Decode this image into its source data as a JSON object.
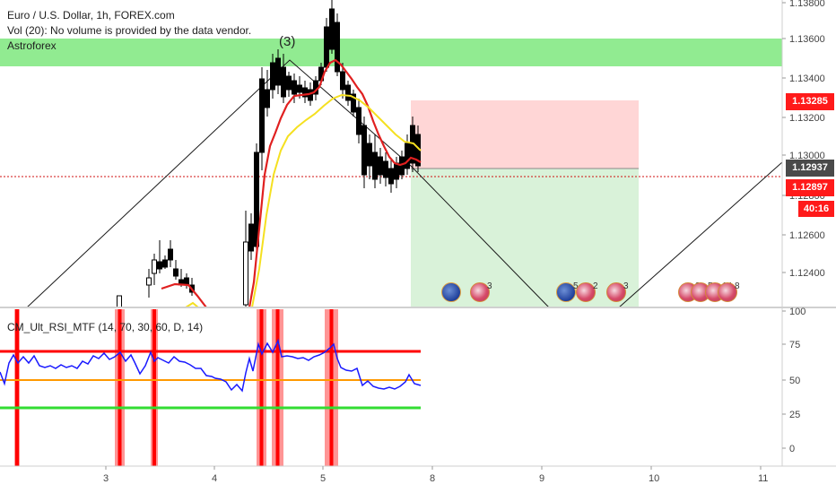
{
  "header": {
    "symbol_line": "Euro / U.S. Dollar, 1h, FOREX.com",
    "volume_line": "Vol (20): No volume is provided by the data vendor.",
    "author_line": "Astroforex"
  },
  "wave_label": "(3)",
  "rsi_title": "CM_Ult_RSI_MTF (14, 70, 30, 60, D, 14)",
  "price_axis": {
    "ticks": [
      "1.13800",
      "1.13600",
      "1.13400",
      "1.13200",
      "1.13000",
      "1.12800",
      "1.12600",
      "1.12400"
    ],
    "tag_high": "1.13285",
    "tag_current": "1.12937",
    "tag_low": "1.12897",
    "timer": "40:16"
  },
  "rsi_axis": {
    "ticks": [
      "100",
      "75",
      "50",
      "25",
      "0"
    ]
  },
  "time_axis": {
    "ticks": [
      "3",
      "4",
      "5",
      "8",
      "9",
      "10",
      "11"
    ]
  },
  "events": [
    {
      "type": "eu",
      "num": ""
    },
    {
      "type": "us",
      "num": "3"
    },
    {
      "type": "eu",
      "num": "5"
    },
    {
      "type": "us",
      "num": "2"
    },
    {
      "type": "us",
      "num": "3"
    },
    {
      "type": "us",
      "num": "8"
    },
    {
      "type": "us",
      "num": "5"
    },
    {
      "type": "us",
      "num": "14"
    },
    {
      "type": "us",
      "num": "8"
    }
  ],
  "colors": {
    "up_candle": "#ffffff",
    "down_candle": "#000000",
    "ema_fast": "#e02020",
    "ema_slow": "#f5e020",
    "zone_green": "#7ee87e",
    "stop_zone": "#ffd6d6",
    "target_zone": "#d9f2d9",
    "rsi_line": "#1a1aff",
    "rsi_upper": "#ff0000",
    "rsi_mid": "#ff9900",
    "rsi_lower": "#33dd33",
    "tag_red": "#ff1a1a",
    "tag_gray": "#4a4a4a"
  }
}
